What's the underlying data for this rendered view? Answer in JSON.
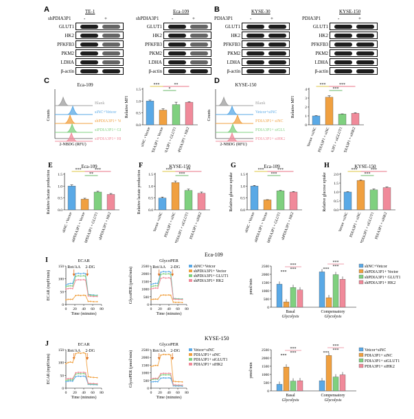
{
  "blots": {
    "A": {
      "letter": "A",
      "groups": [
        {
          "cell": "TE-1",
          "treatment": "shPDIA3P1",
          "lanes": [
            "-",
            "+"
          ]
        },
        {
          "cell": "Eca-109",
          "treatment": "shPDIA3P1",
          "lanes": [
            "-",
            "+"
          ]
        }
      ],
      "proteins": [
        "GLUT1",
        "HK2",
        "PFKFB3",
        "PKM2",
        "LDHA",
        "β-actin"
      ]
    },
    "B": {
      "letter": "B",
      "groups": [
        {
          "cell": "KYSE-30",
          "treatment": "PDIA3P1",
          "lanes": [
            "-",
            "+"
          ]
        },
        {
          "cell": "KYSE-150",
          "treatment": "PDIA3P1",
          "lanes": [
            "-",
            "+"
          ]
        }
      ],
      "proteins": [
        "GLUT1",
        "HK2",
        "PFKFB3",
        "PKM2",
        "LDHA",
        "β-actin"
      ]
    }
  },
  "flow": {
    "C": {
      "letter": "C",
      "title": "Eca-109",
      "ylabel": "Counts",
      "xlabel": "2-NBDG (RFU)",
      "legend": [
        "Blank",
        "siNC+Vetcor",
        "shPDIA3P1+ Vector",
        "siPDIA3P1+ GLUT1",
        "siPDIA3P1+ HK2"
      ],
      "colors": [
        "#9e9e9e",
        "#5aa9e6",
        "#f0a040",
        "#7fd07f",
        "#f08a9a"
      ]
    },
    "D": {
      "letter": "D",
      "title": "KYSE-150",
      "ylabel": "Counts",
      "xlabel": "2-NBDG (RFU)",
      "legend": [
        "Blank",
        "Vetcor+siNC",
        "PDIA3P1+ siNC",
        "PDIA3P1+ siGLUT1",
        "PDIA3P1+ siHK2"
      ],
      "colors": [
        "#9e9e9e",
        "#5aa9e6",
        "#f0a040",
        "#7fd07f",
        "#f08a9a"
      ]
    }
  },
  "chart_data": [
    {
      "id": "C-bar",
      "type": "bar",
      "ylabel": "Relative MFI",
      "ylim": [
        0,
        1.5
      ],
      "yticks": [
        0.0,
        0.5,
        1.0,
        1.5
      ],
      "categories": [
        "siNC +Vector",
        "shPDIA3P1 + Vector",
        "shPDIA3P1 + GLUT1",
        "shPDIA3P1 + HK2"
      ],
      "values": [
        1.0,
        0.62,
        0.85,
        0.95
      ],
      "errors": [
        0.04,
        0.05,
        0.1,
        0.02
      ],
      "stars": [
        {
          "from": 0,
          "to": 1,
          "label": "***"
        },
        {
          "from": 1,
          "to": 2,
          "label": "*"
        },
        {
          "from": 1,
          "to": 3,
          "label": "**"
        }
      ]
    },
    {
      "id": "D-bar",
      "type": "bar",
      "ylabel": "Relative MFI",
      "ylim": [
        0,
        4
      ],
      "yticks": [
        0,
        1,
        2,
        3,
        4
      ],
      "categories": [
        "Vector +siNC",
        "PDIA3P1 + siNC",
        "PDIA3P1 + siGLUT1",
        "PDIA3P1 + siHK2"
      ],
      "values": [
        1.0,
        3.1,
        1.2,
        1.3
      ],
      "errors": [
        0.03,
        0.15,
        0.03,
        0.05
      ],
      "stars": [
        {
          "from": 0,
          "to": 1,
          "label": "***"
        },
        {
          "from": 1,
          "to": 2,
          "label": "***"
        },
        {
          "from": 1,
          "to": 3,
          "label": "***"
        }
      ]
    },
    {
      "id": "E",
      "letter": "E",
      "type": "bar",
      "title": "Eca-109",
      "ylabel": "Relative lactate production",
      "ylim": [
        0,
        1.5
      ],
      "yticks": [
        0.0,
        0.5,
        1.0,
        1.5
      ],
      "categories": [
        "shNC +Vector",
        "shPDIA3P1 + Vector",
        "shPDIA3P1 + GLUT1",
        "shPDIA3P1 + HK2"
      ],
      "values": [
        1.0,
        0.45,
        0.75,
        0.65
      ],
      "errors": [
        0.05,
        0.04,
        0.03,
        0.04
      ],
      "stars": [
        {
          "from": 0,
          "to": 1,
          "label": "***"
        },
        {
          "from": 1,
          "to": 2,
          "label": "**"
        },
        {
          "from": 1,
          "to": 3,
          "label": "***"
        }
      ]
    },
    {
      "id": "F",
      "letter": "F",
      "type": "bar",
      "title": "KYSE-150",
      "ylabel": "Relative lactate production",
      "ylim": [
        0,
        1.5
      ],
      "yticks": [
        0.0,
        0.5,
        1.0,
        1.5
      ],
      "categories": [
        "Vector +siNC",
        "PDIA3P1 + siNC",
        "PDIA3P1 + siGLUT1",
        "PDIA3P1 + siHK2"
      ],
      "values": [
        0.5,
        1.15,
        0.82,
        0.7
      ],
      "errors": [
        0.04,
        0.06,
        0.05,
        0.05
      ],
      "stars": [
        {
          "from": 0,
          "to": 1,
          "label": "***"
        },
        {
          "from": 1,
          "to": 2,
          "label": "***"
        },
        {
          "from": 1,
          "to": 3,
          "label": "**"
        }
      ]
    },
    {
      "id": "G",
      "letter": "G",
      "type": "bar",
      "title": "Eca-109",
      "ylabel": "Relative glucose uptake",
      "ylim": [
        0,
        1.5
      ],
      "yticks": [
        0.0,
        0.5,
        1.0,
        1.5
      ],
      "categories": [
        "shNC +Vector",
        "shPDIA3P1 + Vector",
        "shPDIA3P1 + GLUT1",
        "shPDIA3P1 + HK2"
      ],
      "values": [
        1.0,
        0.42,
        0.8,
        0.75
      ],
      "errors": [
        0.03,
        0.01,
        0.02,
        0.02
      ],
      "stars": [
        {
          "from": 0,
          "to": 1,
          "label": "***"
        },
        {
          "from": 1,
          "to": 2,
          "label": "***"
        },
        {
          "from": 1,
          "to": 3,
          "label": "***"
        }
      ]
    },
    {
      "id": "H",
      "letter": "H",
      "type": "bar",
      "title": "KYSE-150",
      "ylabel": "Relative glucose uptake",
      "ylim": [
        0,
        2.0
      ],
      "yticks": [
        0.0,
        0.5,
        1.0,
        1.5,
        2.0
      ],
      "categories": [
        "Vector +siNC",
        "PDIA3P1 + siNC",
        "PDIA3P1 + siGLUT1",
        "PDIA3P1 + siHK2"
      ],
      "values": [
        1.0,
        1.65,
        1.12,
        1.25
      ],
      "errors": [
        0.02,
        0.03,
        0.05,
        0.03
      ],
      "stars": [
        {
          "from": 0,
          "to": 1,
          "label": "***"
        },
        {
          "from": 1,
          "to": 2,
          "label": "***"
        },
        {
          "from": 1,
          "to": 3,
          "label": "***"
        }
      ]
    },
    {
      "id": "I-ecar",
      "letter": "I",
      "type": "line",
      "title": "ECAR",
      "ylabel": "ECAR (mpH/min)",
      "xlabel": "Time (minutes)",
      "xlim": [
        0,
        80
      ],
      "ylim": [
        0,
        150
      ],
      "xticks": [
        0,
        20,
        40,
        60,
        80
      ],
      "yticks": [
        0,
        50,
        100,
        150
      ],
      "annotations": [
        "Rot/AA",
        "2-DG"
      ],
      "x": [
        0,
        5,
        10,
        15,
        22,
        28,
        33,
        40,
        44,
        50,
        55,
        62,
        70
      ],
      "series": [
        {
          "name": "shNC+Vetcor",
          "color": "#5aa9e6",
          "values": [
            75,
            80,
            82,
            82,
            120,
            122,
            120,
            122,
            120,
            40,
            38,
            37,
            36
          ]
        },
        {
          "name": "shPDIA3P1+ Vector",
          "color": "#f0a040",
          "values": [
            18,
            20,
            20,
            20,
            35,
            36,
            35,
            36,
            35,
            12,
            12,
            11,
            11
          ]
        },
        {
          "name": "shPDIA3P1+ GLUT1",
          "color": "#7fd07f",
          "values": [
            70,
            72,
            73,
            72,
            110,
            112,
            111,
            112,
            110,
            38,
            36,
            35,
            35
          ]
        },
        {
          "name": "shPDIA3P1+ HK2",
          "color": "#f08a9a",
          "values": [
            60,
            62,
            63,
            62,
            95,
            97,
            96,
            97,
            95,
            33,
            32,
            31,
            31
          ]
        }
      ]
    },
    {
      "id": "I-glyco",
      "type": "line",
      "title": "GlycoPER",
      "ylabel": "GlycoPER (pmol/min)",
      "xlabel": "Time (minutes)",
      "xlim": [
        0,
        80
      ],
      "ylim": [
        0,
        2500
      ],
      "xticks": [
        0,
        20,
        40,
        60,
        80
      ],
      "yticks": [
        0,
        500,
        1000,
        1500,
        2000,
        2500
      ],
      "annotations": [
        "Rot/AA",
        "2-DG"
      ],
      "x": [
        0,
        5,
        10,
        15,
        22,
        28,
        33,
        40,
        44,
        50,
        55,
        62,
        70
      ],
      "series": [
        {
          "name": "shNC+Vetcor",
          "color": "#5aa9e6",
          "values": [
            1300,
            1350,
            1380,
            1370,
            2100,
            2150,
            2120,
            2150,
            2100,
            400,
            380,
            370,
            360
          ]
        },
        {
          "name": "shPDIA3P1+ Vector",
          "color": "#f0a040",
          "values": [
            320,
            340,
            350,
            340,
            600,
            620,
            610,
            620,
            600,
            150,
            140,
            140,
            130
          ]
        },
        {
          "name": "shPDIA3P1+ GLUT1",
          "color": "#7fd07f",
          "values": [
            1150,
            1200,
            1220,
            1210,
            1950,
            2000,
            1980,
            2000,
            1950,
            380,
            370,
            360,
            350
          ]
        },
        {
          "name": "shPDIA3P1+ HK2",
          "color": "#f08a9a",
          "values": [
            1000,
            1050,
            1070,
            1060,
            1700,
            1750,
            1720,
            1740,
            1700,
            350,
            340,
            330,
            320
          ]
        }
      ]
    },
    {
      "id": "I-bar",
      "type": "grouped-bar",
      "ylabel": "pmol/min",
      "ylim": [
        0,
        2500
      ],
      "yticks": [
        0,
        500,
        1000,
        1500,
        2000,
        2500
      ],
      "categories": [
        "Basal Glycolysis",
        "Compensatory Glycolysis"
      ],
      "series": [
        {
          "name": "shNC+Vetcor",
          "color": "#5aa9e6",
          "values": [
            1400,
            2150
          ]
        },
        {
          "name": "shPDIA3P1+ Vector",
          "color": "#f0a040",
          "values": [
            320,
            580
          ]
        },
        {
          "name": "shPDIA3P1+ GLUT1",
          "color": "#7fd07f",
          "values": [
            1200,
            1980
          ]
        },
        {
          "name": "shPDIA3P1+ HK2",
          "color": "#f08a9a",
          "values": [
            1050,
            1700
          ]
        }
      ]
    },
    {
      "id": "J-ecar",
      "letter": "J",
      "type": "line",
      "title": "ECAR",
      "ylabel": "ECAR (mpH/min)",
      "xlabel": "Time (minutes)",
      "xlim": [
        0,
        80
      ],
      "ylim": [
        0,
        150
      ],
      "xticks": [
        0,
        20,
        40,
        60,
        80
      ],
      "yticks": [
        0,
        50,
        100,
        150
      ],
      "annotations": [
        "Rot/AA",
        "2-DG"
      ],
      "x": [
        0,
        5,
        10,
        15,
        22,
        28,
        33,
        40,
        44,
        50,
        55,
        62,
        70
      ],
      "series": [
        {
          "name": "Vetcor+siNC",
          "color": "#5aa9e6",
          "values": [
            25,
            27,
            28,
            27,
            45,
            47,
            46,
            47,
            45,
            15,
            14,
            14,
            13
          ]
        },
        {
          "name": "PDIA3P1+ siNC",
          "color": "#f0a040",
          "values": [
            95,
            100,
            102,
            100,
            135,
            138,
            136,
            138,
            135,
            45,
            43,
            42,
            41
          ]
        },
        {
          "name": "PDIA3P1+ siGLUT1",
          "color": "#7fd07f",
          "values": [
            30,
            32,
            33,
            32,
            55,
            57,
            56,
            57,
            55,
            17,
            16,
            16,
            15
          ]
        },
        {
          "name": "PDIA3P1+ siHK2",
          "color": "#f08a9a",
          "values": [
            35,
            37,
            38,
            37,
            60,
            62,
            61,
            62,
            60,
            19,
            18,
            18,
            17
          ]
        }
      ]
    },
    {
      "id": "J-glyco",
      "type": "line",
      "title": "GlycoPER",
      "ylabel": "GlycoPER (pmol/min)",
      "xlabel": "Time (minutes)",
      "xlim": [
        0,
        80
      ],
      "ylim": [
        0,
        2500
      ],
      "xticks": [
        0,
        20,
        40,
        60,
        80
      ],
      "yticks": [
        0,
        500,
        1000,
        1500,
        2000,
        2500
      ],
      "annotations": [
        "Rot/AA",
        "2-DG"
      ],
      "x": [
        0,
        5,
        10,
        15,
        22,
        28,
        33,
        40,
        44,
        50,
        55,
        62,
        70
      ],
      "series": [
        {
          "name": "Vetcor+siNC",
          "color": "#5aa9e6",
          "values": [
            400,
            420,
            430,
            420,
            650,
            670,
            660,
            670,
            650,
            150,
            140,
            140,
            130
          ]
        },
        {
          "name": "PDIA3P1+ siNC",
          "color": "#f0a040",
          "values": [
            1400,
            1450,
            1480,
            1470,
            2150,
            2200,
            2180,
            2200,
            2150,
            450,
            430,
            420,
            410
          ]
        },
        {
          "name": "PDIA3P1+ siGLUT1",
          "color": "#7fd07f",
          "values": [
            550,
            580,
            590,
            580,
            850,
            870,
            860,
            870,
            850,
            200,
            190,
            185,
            180
          ]
        },
        {
          "name": "PDIA3P1+ siHK2",
          "color": "#f08a9a",
          "values": [
            600,
            630,
            640,
            630,
            950,
            970,
            960,
            970,
            950,
            220,
            210,
            205,
            200
          ]
        }
      ]
    },
    {
      "id": "J-bar",
      "type": "grouped-bar",
      "ylabel": "pmol/min",
      "ylim": [
        0,
        2500
      ],
      "yticks": [
        0,
        500,
        1000,
        1500,
        2000,
        2500
      ],
      "categories": [
        "Basal Glycolysis",
        "Compensatory Glycolysis"
      ],
      "series": [
        {
          "name": "Vetcor+siNC",
          "color": "#5aa9e6",
          "values": [
            400,
            620
          ]
        },
        {
          "name": "PDIA3P1+ siNC",
          "color": "#f0a040",
          "values": [
            1450,
            2150
          ]
        },
        {
          "name": "PDIA3P1+ siGLUT1",
          "color": "#7fd07f",
          "values": [
            600,
            850
          ]
        },
        {
          "name": "PDIA3P1+ siHK2",
          "color": "#f08a9a",
          "values": [
            620,
            980
          ]
        }
      ]
    }
  ],
  "row_titles": {
    "I": "Eca-109",
    "J": "KYSE-150"
  }
}
